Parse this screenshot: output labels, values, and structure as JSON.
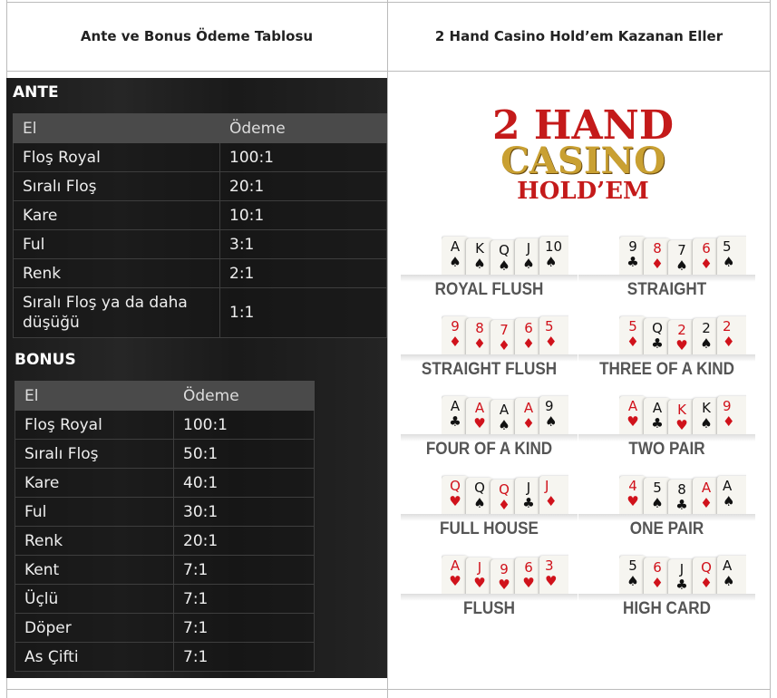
{
  "header": {
    "left_title": "Ante ve Bonus  Ödeme Tablosu",
    "right_title": "2 Hand Casino Hold’em Kazanan Eller"
  },
  "ante": {
    "title": "ANTE",
    "columns": [
      "El",
      "Ödeme"
    ],
    "rows": [
      [
        "Floş Royal",
        "100:1"
      ],
      [
        "Sıralı Floş",
        "20:1"
      ],
      [
        "Kare",
        "10:1"
      ],
      [
        "Ful",
        "3:1"
      ],
      [
        "Renk",
        "2:1"
      ],
      [
        "Sıralı Floş ya da daha düşüğü",
        "1:1"
      ]
    ]
  },
  "bonus": {
    "title": "BONUS",
    "columns": [
      "El",
      "Ödeme"
    ],
    "rows": [
      [
        "Floş Royal",
        "100:1"
      ],
      [
        "Sıralı Floş",
        "50:1"
      ],
      [
        "Kare",
        "40:1"
      ],
      [
        "Ful",
        "30:1"
      ],
      [
        "Renk",
        "20:1"
      ],
      [
        "Kent",
        "7:1"
      ],
      [
        "Üçlü",
        "7:1"
      ],
      [
        "Döper",
        "7:1"
      ],
      [
        "As Çifti",
        "7:1"
      ]
    ]
  },
  "logo": {
    "line1": "2 HAND",
    "line2": "CASINO",
    "line3": "HOLD’EM"
  },
  "colors": {
    "red": "#d0121b",
    "black": "#111111",
    "gold": "#c9a032",
    "label": "#555555"
  },
  "hands": [
    {
      "name": "ROYAL FLUSH",
      "cards": [
        [
          "A",
          "♠"
        ],
        [
          "K",
          "♠"
        ],
        [
          "Q",
          "♠"
        ],
        [
          "J",
          "♠"
        ],
        [
          "10",
          "♠"
        ]
      ]
    },
    {
      "name": "STRAIGHT",
      "cards": [
        [
          "9",
          "♣"
        ],
        [
          "8",
          "♦"
        ],
        [
          "7",
          "♠"
        ],
        [
          "6",
          "♦"
        ],
        [
          "5",
          "♠"
        ]
      ]
    },
    {
      "name": "STRAIGHT FLUSH",
      "cards": [
        [
          "9",
          "♦"
        ],
        [
          "8",
          "♦"
        ],
        [
          "7",
          "♦"
        ],
        [
          "6",
          "♦"
        ],
        [
          "5",
          "♦"
        ]
      ]
    },
    {
      "name": "THREE OF A KIND",
      "cards": [
        [
          "5",
          "♦"
        ],
        [
          "Q",
          "♣"
        ],
        [
          "2",
          "♥"
        ],
        [
          "2",
          "♠"
        ],
        [
          "2",
          "♦"
        ]
      ]
    },
    {
      "name": "FOUR OF A KIND",
      "cards": [
        [
          "A",
          "♣"
        ],
        [
          "A",
          "♥"
        ],
        [
          "A",
          "♠"
        ],
        [
          "A",
          "♦"
        ],
        [
          "9",
          "♠"
        ]
      ]
    },
    {
      "name": "TWO PAIR",
      "cards": [
        [
          "A",
          "♥"
        ],
        [
          "A",
          "♣"
        ],
        [
          "K",
          "♥"
        ],
        [
          "K",
          "♠"
        ],
        [
          "9",
          "♦"
        ]
      ]
    },
    {
      "name": "FULL HOUSE",
      "cards": [
        [
          "Q",
          "♥"
        ],
        [
          "Q",
          "♠"
        ],
        [
          "Q",
          "♦"
        ],
        [
          "J",
          "♣"
        ],
        [
          "J",
          "♦"
        ]
      ]
    },
    {
      "name": "ONE PAIR",
      "cards": [
        [
          "4",
          "♥"
        ],
        [
          "5",
          "♠"
        ],
        [
          "8",
          "♣"
        ],
        [
          "A",
          "♦"
        ],
        [
          "A",
          "♠"
        ]
      ]
    },
    {
      "name": "FLUSH",
      "cards": [
        [
          "A",
          "♥"
        ],
        [
          "J",
          "♥"
        ],
        [
          "9",
          "♥"
        ],
        [
          "6",
          "♥"
        ],
        [
          "3",
          "♥"
        ]
      ]
    },
    {
      "name": "HIGH CARD",
      "cards": [
        [
          "5",
          "♠"
        ],
        [
          "6",
          "♦"
        ],
        [
          "J",
          "♣"
        ],
        [
          "Q",
          "♦"
        ],
        [
          "A",
          "♠"
        ]
      ]
    }
  ]
}
